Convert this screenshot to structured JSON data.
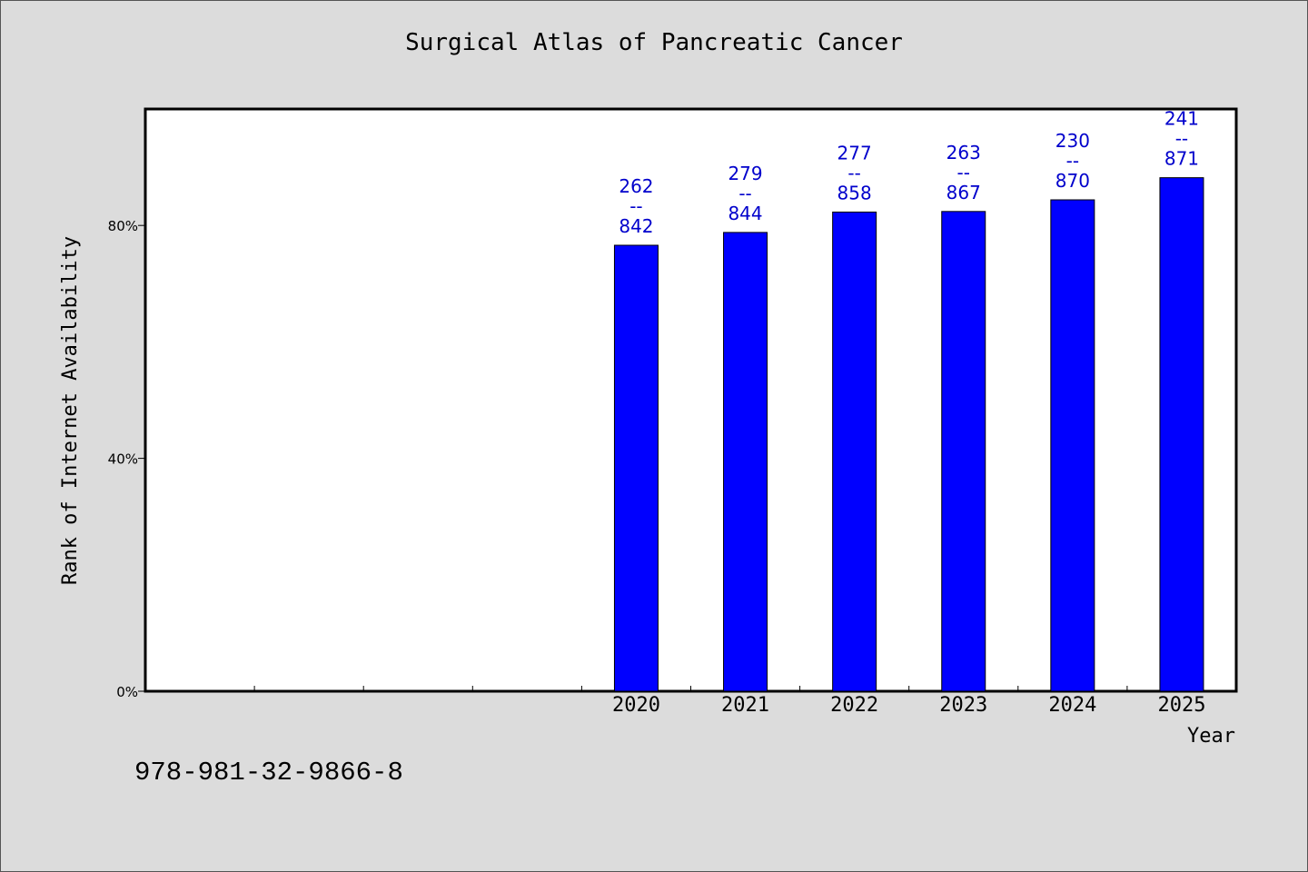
{
  "chart_data": {
    "type": "bar",
    "title": "Surgical Atlas of Pancreatic Cancer",
    "xlabel": "Year",
    "ylabel": "Rank of Internet Availability",
    "categories": [
      "",
      "",
      "",
      "",
      "2020",
      "2021",
      "2022",
      "2023",
      "2024",
      "2025"
    ],
    "values": [
      null,
      null,
      null,
      null,
      76.6,
      78.8,
      82.3,
      82.4,
      84.4,
      88.2
    ],
    "labels": [
      null,
      null,
      null,
      null,
      [
        "262",
        "--",
        "842"
      ],
      [
        "279",
        "--",
        "844"
      ],
      [
        "277",
        "--",
        "858"
      ],
      [
        "263",
        "--",
        "867"
      ],
      [
        "230",
        "--",
        "870"
      ],
      [
        "241",
        "--",
        "871"
      ]
    ],
    "ylim": [
      0,
      100
    ],
    "yticks": [
      0,
      40,
      80
    ],
    "ytick_labels": [
      "0%",
      "40%",
      "80%"
    ],
    "bar_color": "#0000ff",
    "label_color": "#0000cc",
    "background": "#dcdcdc",
    "plot_background": "#ffffff",
    "grid": false,
    "legend": "none"
  },
  "footer_text": "978-981-32-9866-8"
}
